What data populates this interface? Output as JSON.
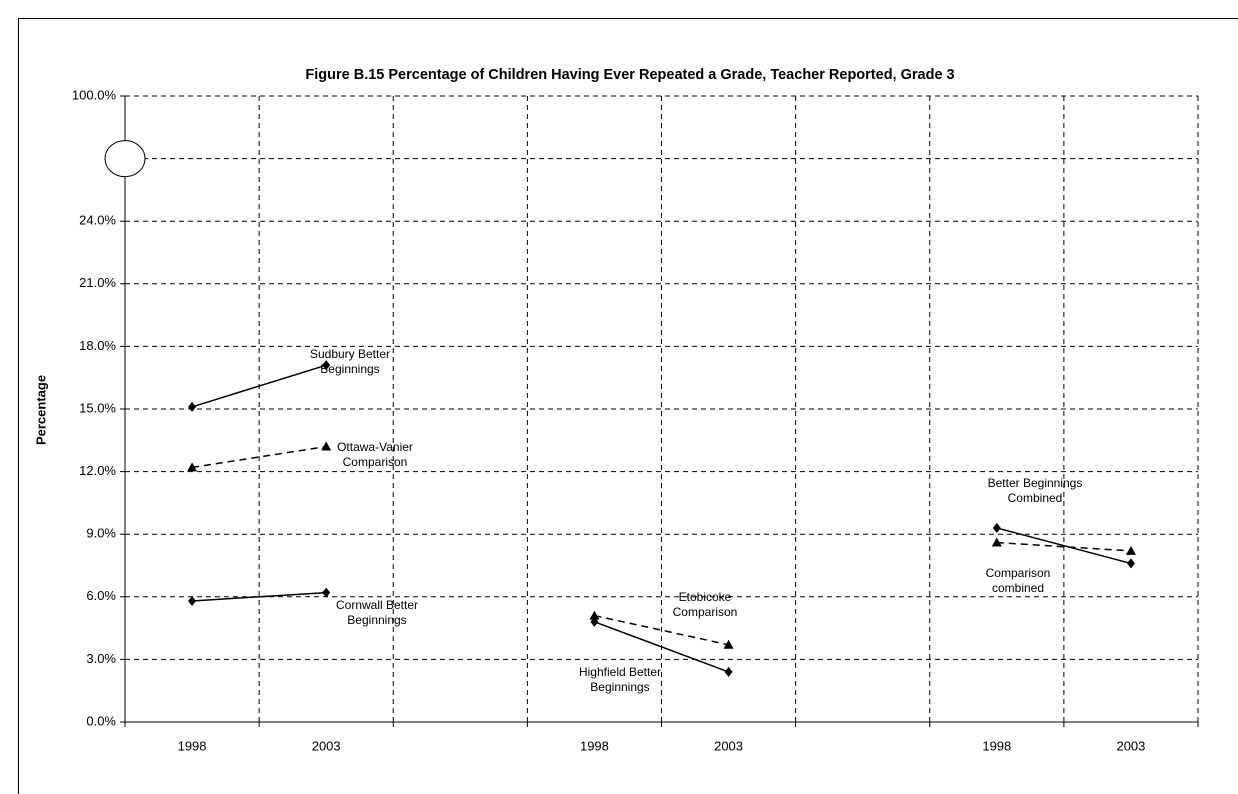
{
  "chart_data": {
    "type": "line",
    "title": "Figure B.15  Percentage of Children Having Ever Repeated a Grade, Teacher Reported, Grade 3",
    "y_label": "Percentage",
    "categories": [
      "1998",
      "2003",
      null,
      "1998",
      "2003",
      null,
      "1998",
      "2003"
    ],
    "ylim": [
      0,
      100
    ],
    "axis_break": [
      24,
      100
    ],
    "yticks": [
      {
        "value": 0,
        "label": "0.0%"
      },
      {
        "value": 3,
        "label": "3.0%"
      },
      {
        "value": 6,
        "label": "6.0%"
      },
      {
        "value": 9,
        "label": "9.0%"
      },
      {
        "value": 12,
        "label": "12.0%"
      },
      {
        "value": 15,
        "label": "15.0%"
      },
      {
        "value": 18,
        "label": "18.0%"
      },
      {
        "value": 21,
        "label": "21.0%"
      },
      {
        "value": 24,
        "label": "24.0%"
      },
      {
        "value": 100,
        "label": "100.0%"
      }
    ],
    "grid": true,
    "series": [
      {
        "name": "Sudbury Better Beginnings",
        "color": "#000000",
        "marker": "diamond",
        "dashed": false,
        "values": [
          15.1,
          17.1,
          null,
          null,
          null,
          null,
          null,
          null
        ]
      },
      {
        "name": "Ottawa-Vanier Comparison",
        "color": "#000000",
        "marker": "triangle",
        "dashed": true,
        "values": [
          12.2,
          13.2,
          null,
          null,
          null,
          null,
          null,
          null
        ]
      },
      {
        "name": "Cornwall Better Beginnings",
        "color": "#000000",
        "marker": "diamond",
        "dashed": false,
        "values": [
          5.8,
          6.2,
          null,
          null,
          null,
          null,
          null,
          null
        ]
      },
      {
        "name": "Highfield Better Beginnings",
        "color": "#000000",
        "marker": "diamond",
        "dashed": false,
        "values": [
          null,
          null,
          null,
          4.8,
          2.4,
          null,
          null,
          null
        ]
      },
      {
        "name": "Etobicoke Comparison",
        "color": "#000000",
        "marker": "triangle",
        "dashed": true,
        "values": [
          null,
          null,
          null,
          5.1,
          3.7,
          null,
          null,
          null
        ]
      },
      {
        "name": "Better Beginnings Combined",
        "color": "#000000",
        "marker": "diamond",
        "dashed": false,
        "values": [
          null,
          null,
          null,
          null,
          null,
          null,
          9.3,
          7.6
        ]
      },
      {
        "name": "Comparison combined",
        "color": "#000000",
        "marker": "triangle",
        "dashed": true,
        "values": [
          null,
          null,
          null,
          null,
          null,
          null,
          8.6,
          8.2
        ]
      }
    ]
  }
}
